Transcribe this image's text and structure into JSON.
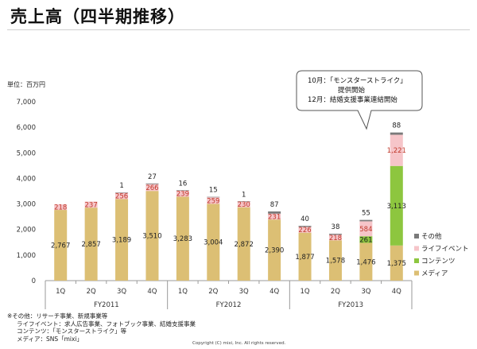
{
  "page": {
    "title": "売上高（四半期推移）",
    "unit": "単位：百万円",
    "callout": {
      "line1": "10月：「モンスターストライク」",
      "line2": "提供開始",
      "line3": "12月：結婚支援事業連結開始"
    },
    "notes": [
      "※その他：リサーチ事業、新規事業等",
      "ライフイベント：求人広告事業、フォトブック事業、結婚支援事業",
      "コンテンツ：「モンスターストライク」等",
      "メディア：SNS「mixi」"
    ],
    "copyright": "Copyright (C) mixi, Inc. All rights reserved."
  },
  "chart_data": {
    "type": "bar",
    "stacked": true,
    "categories": [
      "1Q",
      "2Q",
      "3Q",
      "4Q",
      "1Q",
      "2Q",
      "3Q",
      "4Q",
      "1Q",
      "2Q",
      "3Q",
      "4Q"
    ],
    "groups": [
      {
        "label": "FY2011",
        "start": 0,
        "end": 3
      },
      {
        "label": "FY2012",
        "start": 4,
        "end": 7
      },
      {
        "label": "FY2013",
        "start": 8,
        "end": 11
      }
    ],
    "series": [
      {
        "name": "メディア",
        "color": "#dcbf74",
        "values": [
          2767,
          2857,
          3189,
          3510,
          3283,
          3004,
          2872,
          2390,
          1877,
          1578,
          1476,
          1375
        ],
        "labels": [
          "2,767",
          "2,857",
          "3,189",
          "3,510",
          "3,283",
          "3,004",
          "2,872",
          "2,390",
          "1,877",
          "1,578",
          "1,476",
          "1,375"
        ]
      },
      {
        "name": "コンテンツ",
        "color": "#8dc63f",
        "values": [
          0,
          0,
          0,
          0,
          0,
          0,
          0,
          0,
          0,
          0,
          261,
          3113
        ],
        "labels": [
          "",
          "",
          "",
          "",
          "",
          "",
          "",
          "",
          "",
          "",
          "261",
          "3,113"
        ]
      },
      {
        "name": "ライフイベント",
        "color": "#f6c5c9",
        "values": [
          218,
          237,
          256,
          266,
          239,
          259,
          230,
          231,
          226,
          218,
          584,
          1221
        ],
        "labels": [
          "218",
          "237",
          "256",
          "266",
          "239",
          "259",
          "230",
          "231",
          "226",
          "218",
          "584",
          "1,221"
        ]
      },
      {
        "name": "その他",
        "color": "#7a7a7a",
        "values": [
          0,
          0,
          1,
          27,
          16,
          15,
          1,
          87,
          40,
          38,
          55,
          88
        ],
        "labels": [
          "",
          "",
          "1",
          "27",
          "16",
          "15",
          "1",
          "87",
          "40",
          "38",
          "55",
          "88"
        ]
      }
    ],
    "ylim": [
      0,
      7000
    ],
    "yticks": [
      0,
      1000,
      2000,
      3000,
      4000,
      5000,
      6000,
      7000
    ],
    "ytick_labels": [
      "0",
      "1,000",
      "2,000",
      "3,000",
      "4,000",
      "5,000",
      "6,000",
      "7,000"
    ],
    "ylabel": "単位：百万円",
    "legend": {
      "position": "right",
      "order": [
        "その他",
        "ライフイベント",
        "コンテンツ",
        "メディア"
      ]
    },
    "grid": false
  }
}
